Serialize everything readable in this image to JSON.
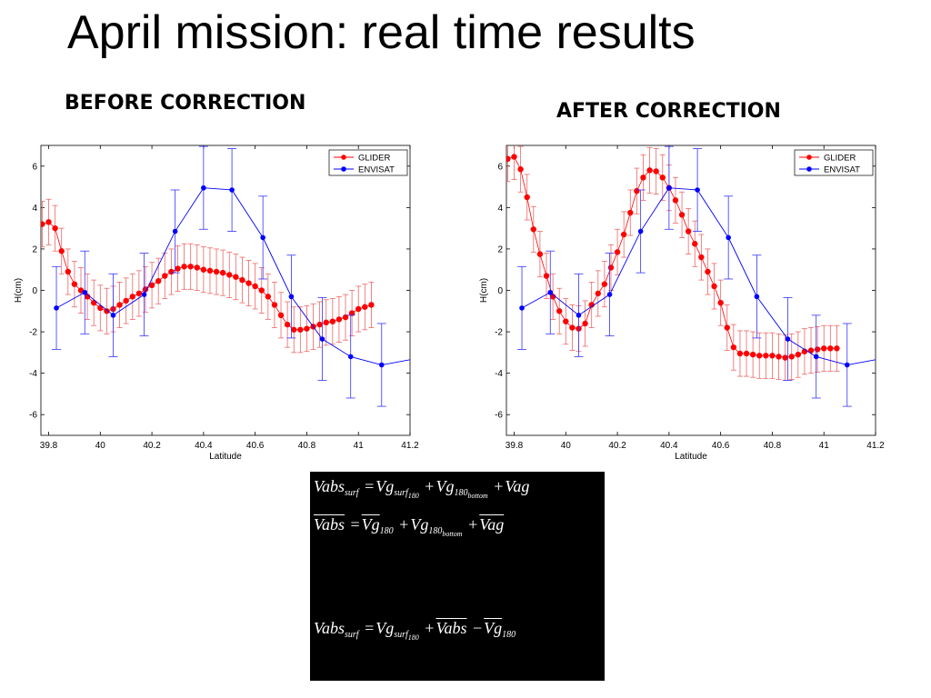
{
  "slide": {
    "title": "April mission: real time results",
    "before_label": "BEFORE CORRECTION",
    "after_label": "AFTER CORRECTION"
  },
  "colors": {
    "glider": "#ff0000",
    "glider_err": "#ee6666",
    "envisat": "#0000ff",
    "envisat_err": "#3333ff"
  },
  "chart_data": [
    {
      "type": "scatter",
      "title": "",
      "xlabel": "Latitude",
      "ylabel": "H(cm)",
      "xlim": [
        39.77,
        41.2
      ],
      "ylim": [
        -7,
        7
      ],
      "xticks": [
        "39.8",
        "40",
        "40.2",
        "40.4",
        "40.6",
        "40.8",
        "41",
        "41.2"
      ],
      "xtick_values": [
        39.8,
        40.0,
        40.2,
        40.4,
        40.6,
        40.8,
        41.0,
        41.2
      ],
      "yticks": [
        "-6",
        "-4",
        "-2",
        "0",
        "2",
        "4",
        "6"
      ],
      "ytick_values": [
        -6,
        -4,
        -2,
        0,
        2,
        4,
        6
      ],
      "grid": false,
      "legend": "top-right",
      "series": [
        {
          "name": "GLIDER",
          "line": true,
          "error": 1.1,
          "x": [
            39.775,
            39.8,
            39.825,
            39.85,
            39.875,
            39.9,
            39.925,
            39.95,
            39.975,
            40.0,
            40.025,
            40.05,
            40.075,
            40.1,
            40.125,
            40.15,
            40.175,
            40.2,
            40.225,
            40.25,
            40.275,
            40.3,
            40.325,
            40.35,
            40.375,
            40.4,
            40.425,
            40.45,
            40.475,
            40.5,
            40.525,
            40.55,
            40.575,
            40.6,
            40.625,
            40.65,
            40.675,
            40.7,
            40.725,
            40.75,
            40.775,
            40.8,
            40.825,
            40.85,
            40.875,
            40.9,
            40.925,
            40.95,
            40.975,
            41.0,
            41.025,
            41.05
          ],
          "y": [
            3.2,
            3.3,
            3.0,
            1.9,
            0.9,
            0.3,
            0.0,
            -0.3,
            -0.6,
            -0.85,
            -1.0,
            -0.9,
            -0.7,
            -0.5,
            -0.3,
            -0.15,
            0.05,
            0.25,
            0.45,
            0.7,
            0.9,
            1.05,
            1.15,
            1.15,
            1.1,
            1.0,
            0.95,
            0.9,
            0.85,
            0.75,
            0.65,
            0.5,
            0.35,
            0.2,
            0.0,
            -0.3,
            -0.7,
            -1.2,
            -1.65,
            -1.9,
            -1.9,
            -1.85,
            -1.75,
            -1.65,
            -1.55,
            -1.5,
            -1.4,
            -1.3,
            -1.1,
            -0.9,
            -0.8,
            -0.7
          ]
        },
        {
          "name": "ENVISAT",
          "line": true,
          "error": 2.0,
          "x": [
            39.83,
            39.94,
            40.05,
            40.17,
            40.29,
            40.4,
            40.51,
            40.63,
            40.74,
            40.86,
            40.97,
            41.09,
            41.2
          ],
          "y": [
            -0.85,
            -0.1,
            -1.2,
            -0.2,
            2.85,
            4.95,
            4.85,
            2.55,
            -0.3,
            -2.35,
            -3.2,
            -3.6,
            -3.35
          ],
          "point_visible": [
            true,
            true,
            true,
            true,
            true,
            true,
            true,
            true,
            true,
            true,
            true,
            true,
            false
          ]
        }
      ]
    },
    {
      "type": "scatter",
      "title": "",
      "xlabel": "Latitude",
      "ylabel": "H(cm)",
      "xlim": [
        39.77,
        41.2
      ],
      "ylim": [
        -7,
        7
      ],
      "xticks": [
        "39.8",
        "40",
        "40.2",
        "40.4",
        "40.6",
        "40.8",
        "41",
        "41.2"
      ],
      "xtick_values": [
        39.8,
        40.0,
        40.2,
        40.4,
        40.6,
        40.8,
        41.0,
        41.2
      ],
      "yticks": [
        "-6",
        "-4",
        "-2",
        "0",
        "2",
        "4",
        "6"
      ],
      "ytick_values": [
        -6,
        -4,
        -2,
        0,
        2,
        4,
        6
      ],
      "grid": false,
      "legend": "top-right",
      "series": [
        {
          "name": "GLIDER",
          "line": true,
          "error": 1.1,
          "x": [
            39.775,
            39.8,
            39.825,
            39.85,
            39.875,
            39.9,
            39.925,
            39.95,
            39.975,
            40.0,
            40.025,
            40.05,
            40.075,
            40.1,
            40.125,
            40.15,
            40.175,
            40.2,
            40.225,
            40.25,
            40.275,
            40.3,
            40.325,
            40.35,
            40.375,
            40.4,
            40.425,
            40.45,
            40.475,
            40.5,
            40.525,
            40.55,
            40.575,
            40.6,
            40.625,
            40.65,
            40.675,
            40.7,
            40.725,
            40.75,
            40.775,
            40.8,
            40.825,
            40.85,
            40.875,
            40.9,
            40.925,
            40.95,
            40.975,
            41.0,
            41.025,
            41.05
          ],
          "y": [
            6.35,
            6.45,
            5.85,
            4.5,
            2.95,
            1.75,
            0.7,
            -0.3,
            -1.0,
            -1.5,
            -1.8,
            -1.85,
            -1.6,
            -0.7,
            -0.15,
            0.3,
            1.1,
            1.85,
            2.7,
            3.75,
            4.8,
            5.45,
            5.8,
            5.75,
            5.45,
            4.95,
            4.35,
            3.65,
            2.85,
            2.25,
            1.6,
            0.9,
            0.2,
            -0.6,
            -1.8,
            -2.75,
            -3.05,
            -3.05,
            -3.1,
            -3.15,
            -3.15,
            -3.15,
            -3.2,
            -3.25,
            -3.2,
            -3.1,
            -2.95,
            -2.9,
            -2.85,
            -2.8,
            -2.8,
            -2.8
          ]
        },
        {
          "name": "ENVISAT",
          "line": true,
          "error": 2.0,
          "x": [
            39.83,
            39.94,
            40.05,
            40.17,
            40.29,
            40.4,
            40.51,
            40.63,
            40.74,
            40.86,
            40.97,
            41.09,
            41.2
          ],
          "y": [
            -0.85,
            -0.1,
            -1.2,
            -0.2,
            2.85,
            4.95,
            4.85,
            2.55,
            -0.3,
            -2.35,
            -3.2,
            -3.6,
            -3.35
          ],
          "point_visible": [
            true,
            true,
            true,
            true,
            true,
            true,
            true,
            true,
            true,
            true,
            true,
            true,
            false
          ]
        }
      ]
    }
  ],
  "equations": {
    "eq1": {
      "lhs": "Vabs",
      "lhs_sub": "surf",
      "t1": "Vg",
      "t1_sub": "surf",
      "t1_subsub": "180",
      "t2": "Vg",
      "t2_sub": "180",
      "t2_subsub": "bottom",
      "t3": "Vag"
    },
    "eq2": {
      "lhs": "Vabs",
      "t1": "Vg",
      "t1_sub": "180",
      "t2": "Vg",
      "t2_sub": "180",
      "t2_subsub": "bottom",
      "t3": "Vag"
    },
    "eq3": {
      "lhs": "Vabs",
      "lhs_sub": "surf",
      "t1": "Vg",
      "t1_sub": "surf",
      "t1_subsub": "180",
      "t2": "Vabs",
      "t3": "Vg",
      "t3_sub": "180"
    },
    "eq_sign": "=",
    "plus": "+",
    "minus": "−"
  }
}
